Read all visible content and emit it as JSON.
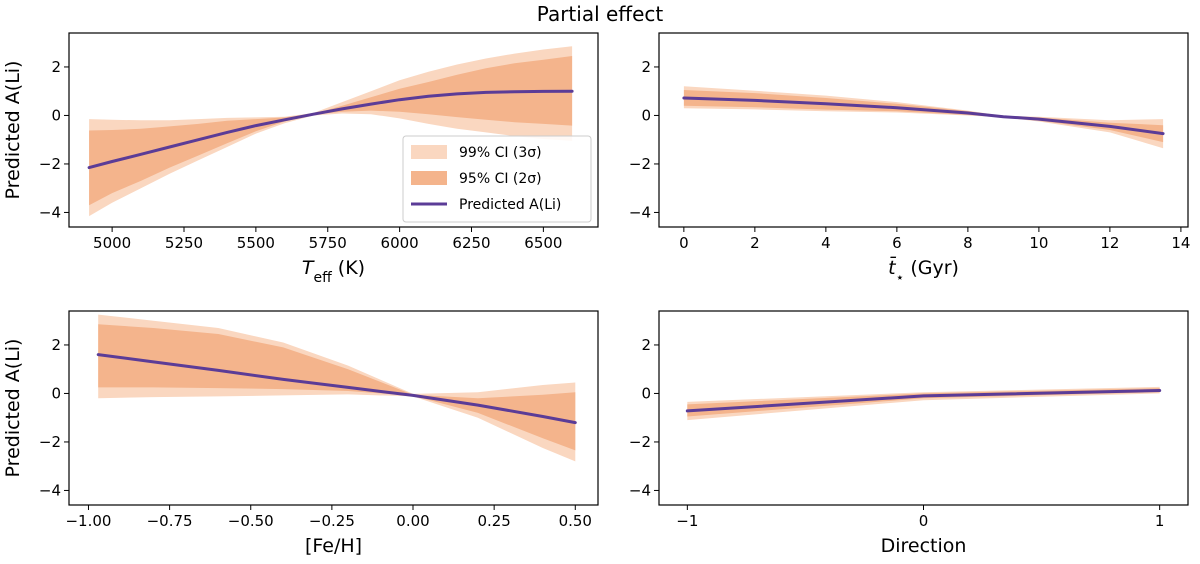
{
  "figure": {
    "title": "Partial effect"
  },
  "colors": {
    "ci99": "#fad7c0",
    "ci95": "#f4b48c",
    "line": "#5b3c97"
  },
  "legend": {
    "location": "center-right",
    "entries": [
      "99% CI (3σ)",
      "95% CI (2σ)",
      "Predicted A(Li)"
    ]
  },
  "chart_data": [
    {
      "type": "line",
      "name": "teff",
      "xlabel_main": "T",
      "xlabel_sub": "eff",
      "xlabel_rest": " (K)",
      "ylabel": "Predicted A(Li)",
      "xlim": [
        4850,
        6690
      ],
      "ylim": [
        -4.6,
        3.4
      ],
      "xticks": [
        5000,
        5250,
        5500,
        5750,
        6000,
        6250,
        6500
      ],
      "xtick_labels": [
        "5000",
        "5250",
        "5500",
        "5750",
        "6000",
        "6250",
        "6500"
      ],
      "yticks": [
        -4,
        -2,
        0,
        2
      ],
      "ytick_labels": [
        "−4",
        "−2",
        "0",
        "2"
      ],
      "show_legend": true,
      "x": [
        4920,
        5000,
        5100,
        5200,
        5300,
        5400,
        5500,
        5600,
        5700,
        5800,
        5900,
        6000,
        6100,
        6200,
        6300,
        6400,
        6500,
        6600
      ],
      "y": [
        -2.15,
        -1.9,
        -1.6,
        -1.3,
        -1.0,
        -0.7,
        -0.42,
        -0.18,
        0.05,
        0.27,
        0.47,
        0.65,
        0.79,
        0.89,
        0.95,
        0.98,
        0.99,
        1.0
      ],
      "ci95_lower": [
        -3.7,
        -3.2,
        -2.7,
        -2.15,
        -1.65,
        -1.15,
        -0.65,
        -0.25,
        0.03,
        0.15,
        0.2,
        0.15,
        0.05,
        -0.07,
        -0.18,
        -0.28,
        -0.35,
        -0.42
      ],
      "ci95_upper": [
        -0.62,
        -0.6,
        -0.55,
        -0.45,
        -0.35,
        -0.22,
        -0.15,
        -0.08,
        0.07,
        0.4,
        0.75,
        1.1,
        1.38,
        1.68,
        1.95,
        2.15,
        2.3,
        2.45
      ],
      "ci99_lower": [
        -4.15,
        -3.6,
        -3.0,
        -2.4,
        -1.85,
        -1.3,
        -0.75,
        -0.32,
        0.0,
        0.08,
        0.05,
        -0.12,
        -0.35,
        -0.55,
        -0.7,
        -0.85,
        -0.97,
        -1.05
      ],
      "ci99_upper": [
        -0.15,
        -0.18,
        -0.2,
        -0.2,
        -0.15,
        -0.1,
        -0.08,
        -0.05,
        0.1,
        0.55,
        1.0,
        1.45,
        1.8,
        2.1,
        2.35,
        2.55,
        2.72,
        2.85
      ]
    },
    {
      "type": "line",
      "name": "age",
      "xlabel_main": "t̄",
      "xlabel_sub": "⋆",
      "xlabel_rest": " (Gyr)",
      "ylabel": "",
      "xlim": [
        -0.7,
        14.2
      ],
      "ylim": [
        -4.6,
        3.4
      ],
      "xticks": [
        0,
        2,
        4,
        6,
        8,
        10,
        12,
        14
      ],
      "xtick_labels": [
        "0",
        "2",
        "4",
        "6",
        "8",
        "10",
        "12",
        "14"
      ],
      "yticks": [
        -4,
        -2,
        0,
        2
      ],
      "ytick_labels": [
        "−4",
        "−2",
        "0",
        "2"
      ],
      "show_legend": false,
      "x": [
        0,
        2,
        4,
        6,
        8,
        9,
        10,
        12,
        13.5
      ],
      "y": [
        0.72,
        0.62,
        0.48,
        0.32,
        0.1,
        -0.05,
        -0.15,
        -0.45,
        -0.75
      ],
      "ci95_lower": [
        0.4,
        0.34,
        0.24,
        0.17,
        0.02,
        -0.07,
        -0.22,
        -0.6,
        -1.1
      ],
      "ci95_upper": [
        1.05,
        0.92,
        0.72,
        0.48,
        0.18,
        -0.03,
        -0.08,
        -0.3,
        -0.4
      ],
      "ci99_lower": [
        0.3,
        0.25,
        0.17,
        0.12,
        0.0,
        -0.08,
        -0.25,
        -0.7,
        -1.35
      ],
      "ci99_upper": [
        1.2,
        1.02,
        0.82,
        0.55,
        0.2,
        -0.02,
        -0.05,
        -0.2,
        -0.15
      ]
    },
    {
      "type": "line",
      "name": "feh",
      "xlabel_main": "[Fe/H]",
      "xlabel_sub": "",
      "xlabel_rest": "",
      "ylabel": "Predicted A(Li)",
      "xlim": [
        -1.06,
        0.57
      ],
      "ylim": [
        -4.6,
        3.4
      ],
      "xticks": [
        -1.0,
        -0.75,
        -0.5,
        -0.25,
        0.0,
        0.25,
        0.5
      ],
      "xtick_labels": [
        "−1.00",
        "−0.75",
        "−0.50",
        "−0.25",
        "0.00",
        "0.25",
        "0.50"
      ],
      "yticks": [
        -4,
        -2,
        0,
        2
      ],
      "ytick_labels": [
        "−4",
        "−2",
        "0",
        "2"
      ],
      "show_legend": false,
      "x": [
        -0.97,
        -0.8,
        -0.6,
        -0.4,
        -0.2,
        0.0,
        0.2,
        0.4,
        0.5
      ],
      "y": [
        1.6,
        1.3,
        0.95,
        0.58,
        0.25,
        -0.08,
        -0.48,
        -0.95,
        -1.2
      ],
      "ci95_lower": [
        0.25,
        0.25,
        0.22,
        0.18,
        0.1,
        -0.1,
        -0.8,
        -1.85,
        -2.35
      ],
      "ci95_upper": [
        2.85,
        2.7,
        2.45,
        1.9,
        1.0,
        -0.05,
        -0.2,
        -0.05,
        0.05
      ],
      "ci99_lower": [
        -0.2,
        -0.15,
        -0.12,
        -0.08,
        -0.04,
        -0.12,
        -1.0,
        -2.25,
        -2.8
      ],
      "ci99_upper": [
        3.25,
        3.0,
        2.7,
        2.1,
        1.15,
        -0.02,
        0.05,
        0.35,
        0.45
      ]
    },
    {
      "type": "line",
      "name": "direction",
      "xlabel_main": "Direction",
      "xlabel_sub": "",
      "xlabel_rest": "",
      "ylabel": "",
      "xlim": [
        -1.12,
        1.12
      ],
      "ylim": [
        -4.6,
        3.4
      ],
      "xticks": [
        -1,
        0,
        1
      ],
      "xtick_labels": [
        "−1",
        "0",
        "1"
      ],
      "yticks": [
        -4,
        -2,
        0,
        2
      ],
      "ytick_labels": [
        "−4",
        "−2",
        "0",
        "2"
      ],
      "show_legend": false,
      "x": [
        -1,
        0,
        1
      ],
      "y": [
        -0.72,
        -0.1,
        0.12
      ],
      "ci95_lower": [
        -0.95,
        -0.2,
        0.05
      ],
      "ci95_upper": [
        -0.45,
        0.0,
        0.22
      ],
      "ci99_lower": [
        -1.1,
        -0.28,
        0.0
      ],
      "ci99_upper": [
        -0.35,
        0.05,
        0.27
      ]
    }
  ]
}
